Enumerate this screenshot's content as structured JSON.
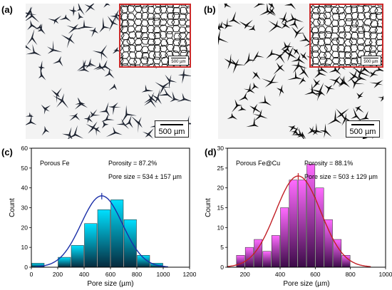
{
  "panels": {
    "a": {
      "label": "(a)",
      "scale_label": "500 µm",
      "inset_scale_label": "500 µm"
    },
    "b": {
      "label": "(b)",
      "scale_label": "500 µm",
      "inset_scale_label": "500 µm"
    },
    "c": {
      "label": "(c)"
    },
    "d": {
      "label": "(d)"
    }
  },
  "chart_data": [
    {
      "type": "bar",
      "panel": "c",
      "sample_label": "Porous Fe",
      "annotations": [
        "Porosity = 87.2%",
        "Pore size = 534 ± 157 µm"
      ],
      "xlabel": "Pore size (µm)",
      "ylabel": "Count",
      "xlim": [
        0,
        1200
      ],
      "ylim": [
        0,
        60
      ],
      "xticks": [
        0,
        200,
        400,
        600,
        800,
        1000,
        1200
      ],
      "yticks": [
        0,
        10,
        20,
        30,
        40,
        50,
        60
      ],
      "bin_width": 100,
      "bins": [
        50,
        250,
        350,
        450,
        550,
        650,
        750,
        850,
        950
      ],
      "values": [
        2,
        5,
        11,
        22,
        29,
        34,
        24,
        6,
        2
      ],
      "fit": {
        "type": "gaussian",
        "mean": 534,
        "sd": 157,
        "peak": 36
      },
      "bar_gradient": [
        "#062a3d",
        "#00e0ff"
      ],
      "fit_color": "#1a2fa8"
    },
    {
      "type": "bar",
      "panel": "d",
      "sample_label": "Porous Fe@Cu",
      "annotations": [
        "Porosity = 88.1%",
        "Pore size = 503 ± 129 µm"
      ],
      "xlabel": "Pore size (µm)",
      "ylabel": "Count",
      "xlim": [
        100,
        1000
      ],
      "ylim": [
        0,
        30
      ],
      "xticks": [
        200,
        400,
        600,
        800,
        1000
      ],
      "yticks": [
        0,
        5,
        10,
        15,
        20,
        25,
        30
      ],
      "bin_width": 50,
      "bins": [
        175,
        225,
        275,
        325,
        375,
        425,
        475,
        525,
        575,
        625,
        675,
        725,
        775
      ],
      "values": [
        3,
        5,
        7,
        4,
        8,
        15,
        22,
        22,
        26,
        20,
        12,
        7,
        3
      ],
      "fit": {
        "type": "gaussian",
        "mean": 503,
        "sd": 129,
        "peak": 23
      },
      "bar_gradient": [
        "#3c0a48",
        "#ff6bff"
      ],
      "fit_color": "#c22026"
    }
  ]
}
